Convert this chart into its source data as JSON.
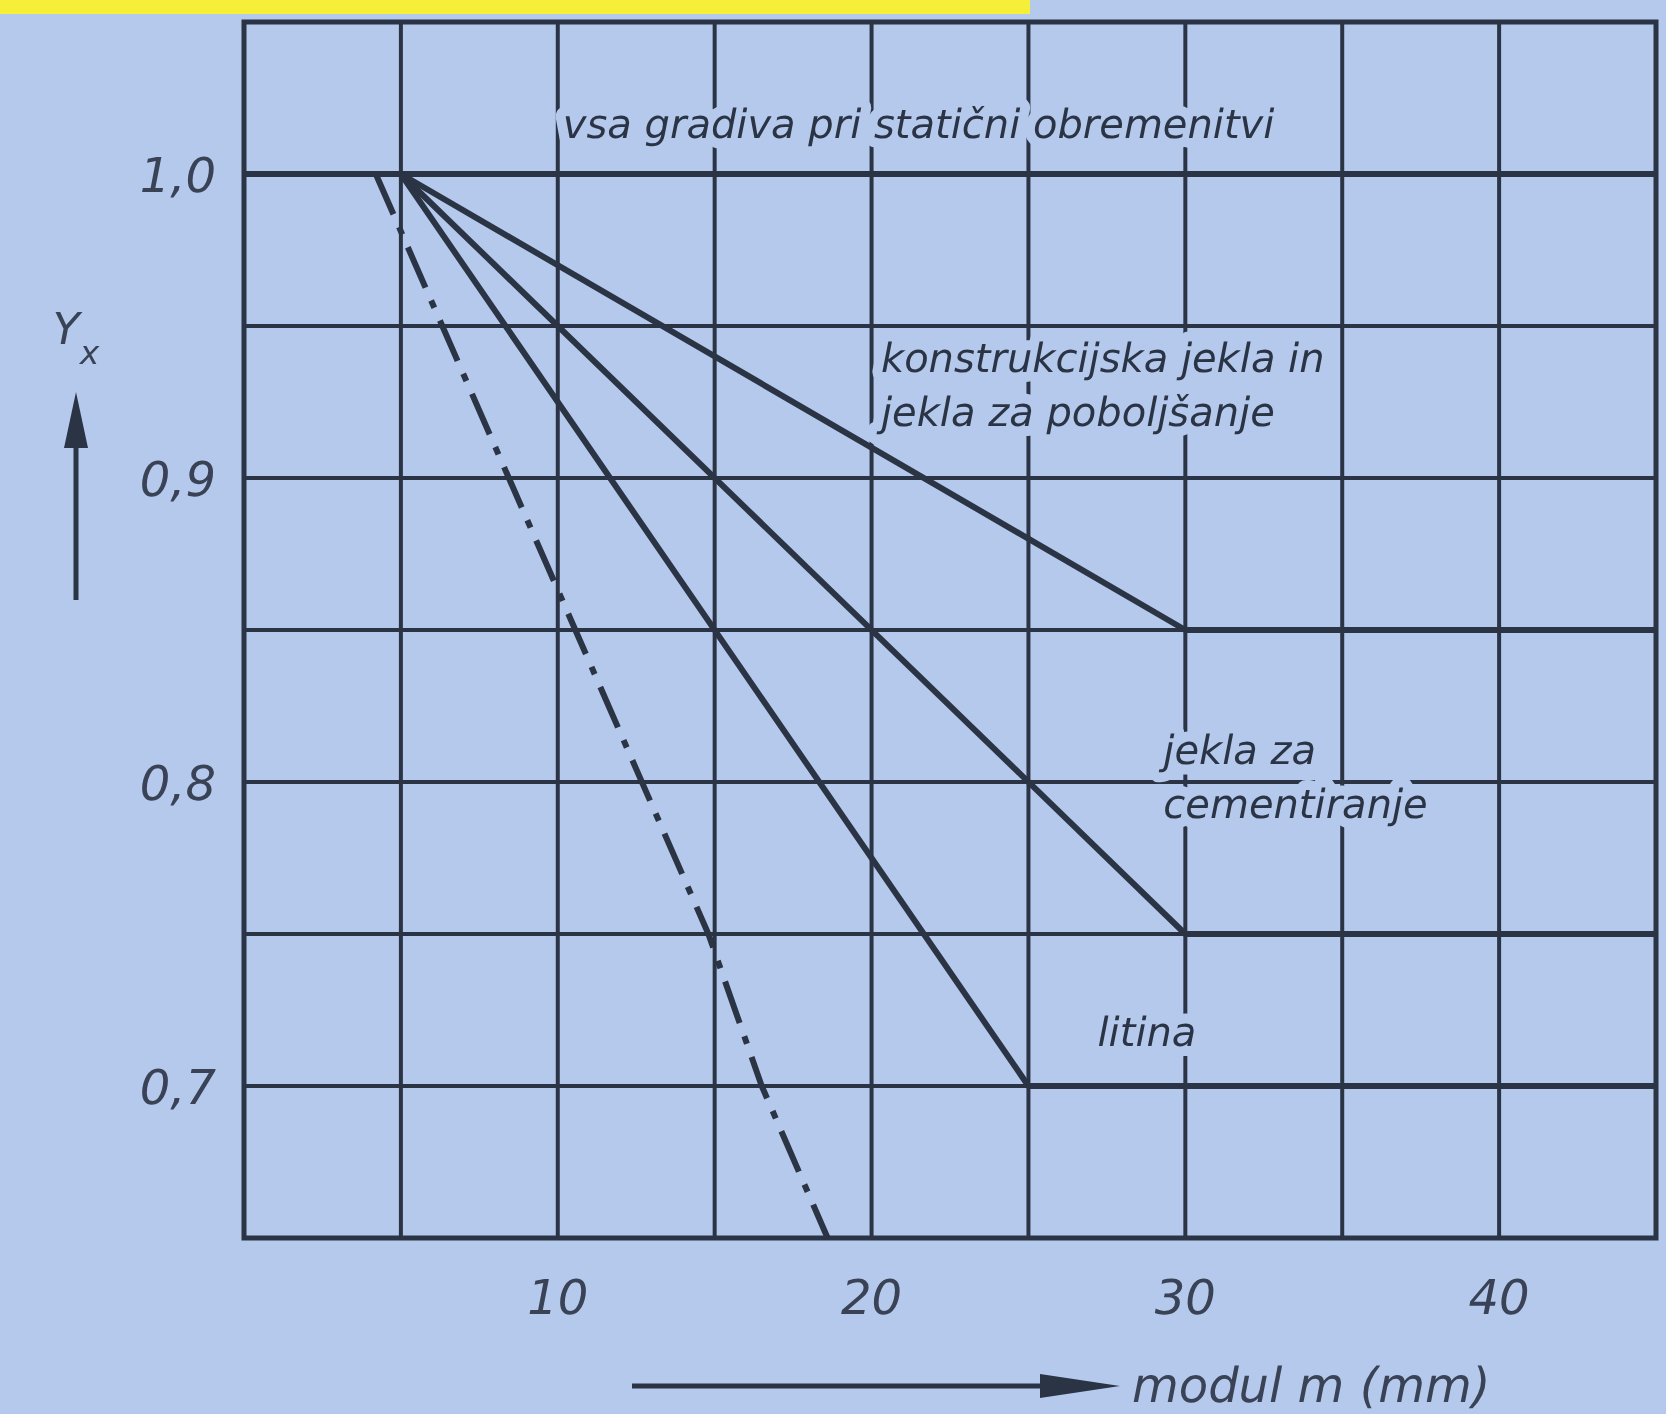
{
  "chart_data": {
    "type": "line",
    "xlabel": "modul m (mm)",
    "ylabel": "Y$_{x}$",
    "xlim": [
      0,
      45
    ],
    "xticks": [
      {
        "value": 5,
        "label": null
      },
      10,
      {
        "value": 15,
        "label": null
      },
      20,
      {
        "value": 25,
        "label": null
      },
      30,
      {
        "value": 35,
        "label": null
      },
      40
    ],
    "ylim": [
      0.65,
      1.05
    ],
    "yticks": [
      {
        "value": 0.7,
        "label": "0,7"
      },
      {
        "value": 0.75,
        "label": null
      },
      {
        "value": 0.8,
        "label": "0,8"
      },
      {
        "value": 0.85,
        "label": null
      },
      {
        "value": 0.9,
        "label": "0,9"
      },
      {
        "value": 0.95,
        "label": null
      },
      {
        "value": 1.0,
        "label": "1,0"
      }
    ],
    "grid": true,
    "marker": "none",
    "line_style": "solid",
    "series": [
      {
        "name": "vsa gradiva pri statični obremenitvi",
        "color": "#2b3445",
        "x": [
          0,
          45
        ],
        "values": [
          1.0,
          1.0
        ]
      },
      {
        "name": "konstrukcijska jekla in jekla za poboljšanje",
        "color": "#2b3445",
        "x": [
          5,
          30,
          45
        ],
        "values": [
          1.0,
          0.85,
          0.85
        ]
      },
      {
        "name": "jekla za cementiranje",
        "color": "#2b3445",
        "x": [
          5,
          30,
          45
        ],
        "values": [
          1.0,
          0.75,
          0.75
        ]
      },
      {
        "name": "litina",
        "color": "#2b3445",
        "x": [
          5,
          25,
          45
        ],
        "values": [
          1.0,
          0.7,
          0.7
        ]
      },
      {
        "color": "#2b3445",
        "line_style": "dashed",
        "x": [
          4.2,
          14.8,
          16.5,
          18.6
        ],
        "values": [
          1.0,
          0.75,
          0.7,
          0.65
        ]
      }
    ]
  }
}
